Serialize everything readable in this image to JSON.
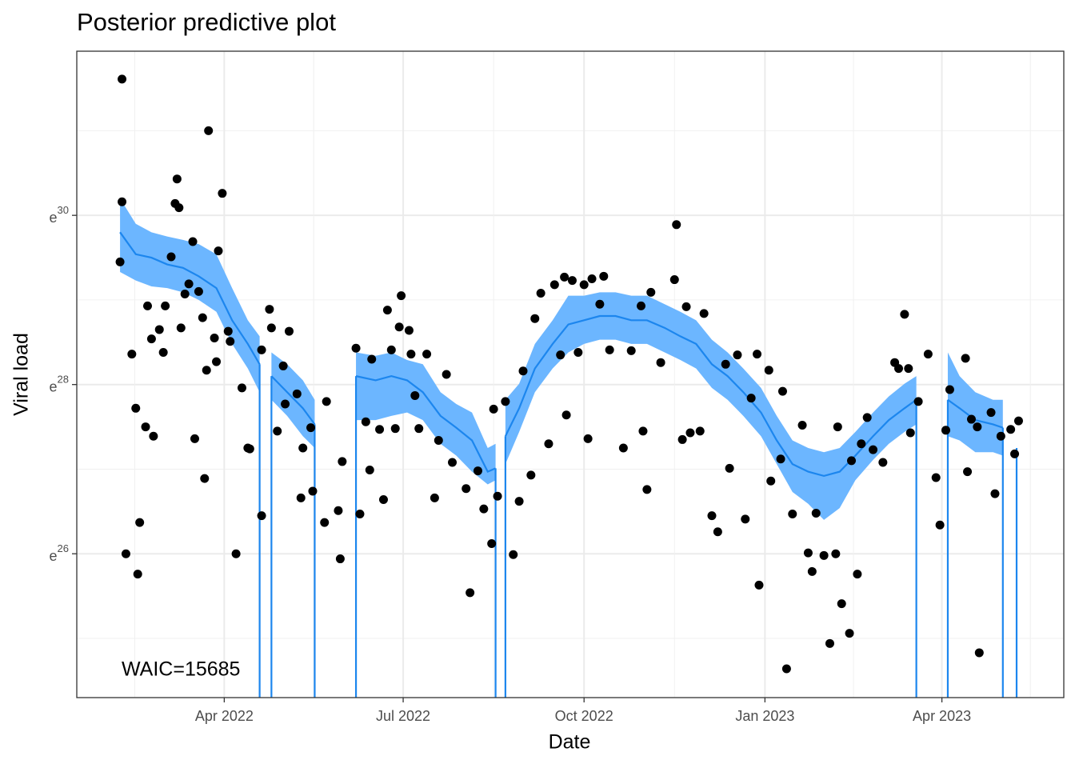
{
  "chart_data": {
    "type": "line",
    "title": "Posterior predictive plot",
    "xlabel": "Date",
    "ylabel": "Viral load",
    "annotation": "WAIC=15685",
    "xlim": [
      "2022-01-16",
      "2023-06-02"
    ],
    "xticks": [
      {
        "value": "2022-04-01",
        "label": "Apr 2022"
      },
      {
        "value": "2022-07-01",
        "label": "Jul 2022"
      },
      {
        "value": "2022-10-01",
        "label": "Oct 2022"
      },
      {
        "value": "2023-01-01",
        "label": "Jan 2023"
      },
      {
        "value": "2023-04-01",
        "label": "Apr 2023"
      }
    ],
    "ylim": [
      24.3,
      31.94
    ],
    "yticks": [
      26,
      28,
      30
    ],
    "y_tick_base": "e",
    "grid": true,
    "minor_grid": true,
    "gaps_to_floor": true,
    "observed": {
      "color": "#000000",
      "x": [
        "2022-02-07",
        "2022-02-08",
        "2022-02-08",
        "2022-02-10",
        "2022-02-13",
        "2022-02-15",
        "2022-02-16",
        "2022-02-17",
        "2022-02-20",
        "2022-02-21",
        "2022-02-23",
        "2022-02-24",
        "2022-02-27",
        "2022-03-01",
        "2022-03-02",
        "2022-03-05",
        "2022-03-07",
        "2022-03-08",
        "2022-03-09",
        "2022-03-10",
        "2022-03-12",
        "2022-03-14",
        "2022-03-16",
        "2022-03-17",
        "2022-03-19",
        "2022-03-21",
        "2022-03-22",
        "2022-03-23",
        "2022-03-24",
        "2022-03-27",
        "2022-03-28",
        "2022-03-29",
        "2022-03-31",
        "2022-04-03",
        "2022-04-04",
        "2022-04-07",
        "2022-04-10",
        "2022-04-13",
        "2022-04-14",
        "2022-04-20",
        "2022-04-20",
        "2022-04-24",
        "2022-04-25",
        "2022-04-28",
        "2022-05-01",
        "2022-05-02",
        "2022-05-04",
        "2022-05-08",
        "2022-05-10",
        "2022-05-11",
        "2022-05-15",
        "2022-05-16",
        "2022-05-22",
        "2022-05-23",
        "2022-05-29",
        "2022-05-30",
        "2022-05-31",
        "2022-06-07",
        "2022-06-09",
        "2022-06-12",
        "2022-06-14",
        "2022-06-15",
        "2022-06-19",
        "2022-06-21",
        "2022-06-23",
        "2022-06-25",
        "2022-06-27",
        "2022-06-29",
        "2022-06-30",
        "2022-07-04",
        "2022-07-05",
        "2022-07-07",
        "2022-07-09",
        "2022-07-13",
        "2022-07-17",
        "2022-07-19",
        "2022-07-23",
        "2022-07-26",
        "2022-08-02",
        "2022-08-04",
        "2022-08-08",
        "2022-08-11",
        "2022-08-15",
        "2022-08-16",
        "2022-08-18",
        "2022-08-22",
        "2022-08-26",
        "2022-08-29",
        "2022-08-31",
        "2022-09-04",
        "2022-09-06",
        "2022-09-09",
        "2022-09-13",
        "2022-09-16",
        "2022-09-19",
        "2022-09-21",
        "2022-09-22",
        "2022-09-25",
        "2022-09-28",
        "2022-10-01",
        "2022-10-03",
        "2022-10-05",
        "2022-10-09",
        "2022-10-11",
        "2022-10-14",
        "2022-10-21",
        "2022-10-25",
        "2022-10-30",
        "2022-10-31",
        "2022-11-02",
        "2022-11-04",
        "2022-11-09",
        "2022-11-16",
        "2022-11-17",
        "2022-11-20",
        "2022-11-22",
        "2022-11-24",
        "2022-11-29",
        "2022-12-01",
        "2022-12-05",
        "2022-12-08",
        "2022-12-12",
        "2022-12-14",
        "2022-12-18",
        "2022-12-22",
        "2022-12-25",
        "2022-12-28",
        "2022-12-29",
        "2023-01-03",
        "2023-01-04",
        "2023-01-09",
        "2023-01-10",
        "2023-01-12",
        "2023-01-15",
        "2023-01-20",
        "2023-01-23",
        "2023-01-25",
        "2023-01-27",
        "2023-01-31",
        "2023-02-03",
        "2023-02-06",
        "2023-02-07",
        "2023-02-09",
        "2023-02-13",
        "2023-02-14",
        "2023-02-17",
        "2023-02-19",
        "2023-02-22",
        "2023-02-25",
        "2023-03-02",
        "2023-03-08",
        "2023-03-10",
        "2023-03-13",
        "2023-03-15",
        "2023-03-16",
        "2023-03-20",
        "2023-03-25",
        "2023-03-29",
        "2023-03-31",
        "2023-04-03",
        "2023-04-05",
        "2023-04-13",
        "2023-04-14",
        "2023-04-16",
        "2023-04-19",
        "2023-04-20",
        "2023-04-26",
        "2023-04-28",
        "2023-05-01",
        "2023-05-06",
        "2023-05-08",
        "2023-05-10"
      ],
      "values": [
        29.45,
        31.61,
        30.16,
        26.0,
        28.36,
        27.72,
        25.76,
        26.37,
        27.5,
        28.93,
        28.54,
        27.39,
        28.65,
        28.38,
        28.93,
        29.51,
        30.14,
        30.43,
        30.09,
        28.67,
        29.07,
        29.19,
        29.69,
        27.36,
        29.1,
        28.79,
        26.89,
        28.17,
        31.0,
        28.55,
        28.27,
        29.58,
        30.26,
        28.63,
        28.51,
        26.0,
        27.96,
        27.25,
        27.24,
        28.41,
        26.45,
        28.89,
        28.67,
        27.45,
        28.22,
        27.77,
        28.63,
        27.89,
        26.66,
        27.25,
        27.49,
        26.74,
        26.37,
        27.8,
        26.51,
        25.94,
        27.09,
        28.43,
        26.47,
        27.56,
        26.99,
        28.3,
        27.47,
        26.64,
        28.88,
        28.41,
        27.48,
        28.68,
        29.05,
        28.64,
        28.36,
        27.87,
        27.48,
        28.36,
        26.66,
        27.34,
        28.12,
        27.08,
        26.77,
        25.54,
        26.98,
        26.53,
        26.12,
        27.71,
        26.68,
        27.8,
        25.99,
        26.62,
        28.16,
        26.93,
        28.78,
        29.08,
        27.3,
        29.18,
        28.35,
        29.27,
        27.64,
        29.23,
        28.38,
        29.18,
        27.36,
        29.25,
        28.95,
        29.28,
        28.41,
        27.25,
        28.4,
        28.93,
        27.45,
        26.76,
        29.09,
        28.26,
        29.24,
        29.89,
        27.35,
        28.92,
        27.43,
        27.45,
        28.84,
        26.45,
        26.26,
        28.24,
        27.01,
        28.35,
        26.41,
        27.84,
        28.36,
        25.63,
        28.17,
        26.86,
        27.12,
        27.92,
        24.64,
        26.47,
        27.52,
        26.01,
        25.79,
        26.48,
        25.98,
        24.94,
        26.0,
        27.5,
        25.41,
        25.06,
        27.1,
        25.76,
        27.3,
        27.61,
        27.23,
        27.08,
        28.26,
        28.19,
        28.83,
        28.19,
        27.43,
        27.8,
        28.36,
        26.9,
        26.34,
        27.46,
        27.94,
        28.31,
        26.97,
        27.59,
        27.5,
        24.83,
        27.67,
        26.71,
        27.39,
        27.47,
        27.18,
        27.57
      ]
    },
    "model": {
      "color": "#1c86ee",
      "band_color": "#6cb6ff",
      "x": [
        "2022-02-07",
        "2022-02-15",
        "2022-02-23",
        "2022-03-03",
        "2022-03-11",
        "2022-03-19",
        "2022-03-28",
        "2022-04-05",
        "2022-04-13",
        "2022-04-19",
        "2022-04-22",
        "2022-04-25",
        "2022-05-03",
        "2022-05-11",
        "2022-05-17",
        "2022-05-25",
        "2022-06-07",
        "2022-06-17",
        "2022-06-25",
        "2022-07-03",
        "2022-07-11",
        "2022-07-20",
        "2022-07-28",
        "2022-08-05",
        "2022-08-13",
        "2022-08-17",
        "2022-08-20",
        "2022-08-22",
        "2022-08-29",
        "2022-09-06",
        "2022-09-15",
        "2022-09-23",
        "2022-10-01",
        "2022-10-09",
        "2022-10-17",
        "2022-10-25",
        "2022-11-02",
        "2022-11-11",
        "2022-11-19",
        "2022-11-27",
        "2022-12-05",
        "2022-12-13",
        "2022-12-21",
        "2022-12-30",
        "2023-01-07",
        "2023-01-15",
        "2023-01-23",
        "2023-01-31",
        "2023-02-08",
        "2023-02-16",
        "2023-02-25",
        "2023-03-05",
        "2023-03-13",
        "2023-03-19",
        "2023-03-25",
        "2023-04-04",
        "2023-04-10",
        "2023-04-18",
        "2023-04-27",
        "2023-05-02",
        "2023-05-04",
        "2023-05-09"
      ],
      "values": [
        29.8,
        29.54,
        29.5,
        29.42,
        29.38,
        29.28,
        29.14,
        28.76,
        28.48,
        28.24,
        null,
        28.1,
        27.91,
        27.72,
        27.53,
        null,
        28.1,
        28.05,
        28.1,
        28.05,
        27.91,
        27.63,
        27.49,
        27.34,
        26.97,
        27.01,
        null,
        27.39,
        27.72,
        28.19,
        28.48,
        28.71,
        28.76,
        28.81,
        28.81,
        28.76,
        28.76,
        28.67,
        28.57,
        28.48,
        28.24,
        28.1,
        27.91,
        27.67,
        27.34,
        27.06,
        26.97,
        26.92,
        26.97,
        27.16,
        27.39,
        27.58,
        27.72,
        27.82,
        null,
        27.82,
        27.72,
        27.58,
        27.53,
        27.49,
        null,
        27.25
      ],
      "upper": [
        30.2,
        29.9,
        29.8,
        29.75,
        29.71,
        29.66,
        29.54,
        29.14,
        28.76,
        28.57,
        null,
        28.38,
        28.24,
        28.05,
        27.82,
        null,
        28.38,
        28.34,
        28.38,
        28.29,
        28.24,
        27.91,
        27.77,
        27.67,
        27.25,
        27.3,
        null,
        27.82,
        28.01,
        28.48,
        28.76,
        29.05,
        29.05,
        29.09,
        29.09,
        29.05,
        29.05,
        28.95,
        28.86,
        28.76,
        28.53,
        28.38,
        28.19,
        27.96,
        27.63,
        27.34,
        27.25,
        27.2,
        27.25,
        27.44,
        27.67,
        27.86,
        28.01,
        28.1,
        null,
        28.38,
        28.1,
        27.91,
        27.82,
        27.82,
        null,
        28.01
      ],
      "lower": [
        29.33,
        29.23,
        29.16,
        29.14,
        29.09,
        29.0,
        28.86,
        28.48,
        28.19,
        27.91,
        null,
        27.82,
        27.63,
        27.39,
        27.25,
        null,
        27.58,
        27.58,
        27.63,
        27.67,
        27.58,
        27.3,
        27.16,
        26.97,
        26.82,
        26.87,
        null,
        27.06,
        27.44,
        27.91,
        28.19,
        28.38,
        28.48,
        28.53,
        28.53,
        28.48,
        28.48,
        28.38,
        28.29,
        28.19,
        27.96,
        27.82,
        27.63,
        27.39,
        27.06,
        26.73,
        26.59,
        26.4,
        26.54,
        26.87,
        27.11,
        27.3,
        27.44,
        27.53,
        null,
        27.39,
        27.34,
        27.2,
        27.2,
        27.16,
        null,
        26.78
      ]
    }
  }
}
